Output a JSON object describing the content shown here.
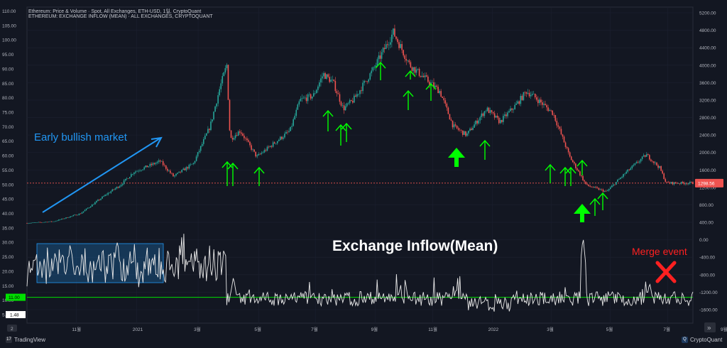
{
  "header": {
    "line1": "Ethereum: Price & Volume · Spot, All Exchanges, ETH-USD, 1일, CryptoQuant",
    "line2": "ETHEREUM: EXCHANGE INFLOW (MEAN) · ALL EXCHANGES, CRYPTOQUANT"
  },
  "annotations": {
    "early": "Early bullish market",
    "inflow": "Exchange Inflow(Mean)",
    "merge": "Merge event"
  },
  "footer": {
    "left": "TradingView",
    "right": "CryptoQuant",
    "pane_num": "2",
    "go_icon": "chevron-double-right-icon"
  },
  "colors": {
    "up": "#26a69a",
    "down": "#ef5350",
    "arrow": "#00ff00",
    "trend": "#2196f3",
    "price_line": "#ef5350",
    "merge": "#ff2020",
    "threshold": "#00e000"
  },
  "chart_data": {
    "type": "candlestick+line",
    "left_axis": {
      "ticks": [
        "110.00",
        "105.00",
        "100.00",
        "95.00",
        "90.00",
        "85.00",
        "80.00",
        "75.00",
        "70.00",
        "65.00",
        "60.00",
        "55.00",
        "50.00",
        "45.00",
        "40.00",
        "35.00",
        "30.00",
        "25.00",
        "20.00",
        "15.00",
        "10.00",
        "5.00"
      ]
    },
    "right_axis": {
      "ticks": [
        "5200.00",
        "4800.00",
        "4400.00",
        "4000.00",
        "3600.00",
        "3200.00",
        "2800.00",
        "2400.00",
        "2000.00",
        "1600.00",
        "1200.00",
        "800.00",
        "400.00",
        "0.00",
        "-400.00",
        "-800.00",
        "-1200.00",
        "-1600.00"
      ]
    },
    "x_ticks": [
      "11월",
      "2021",
      "3월",
      "5월",
      "7월",
      "9월",
      "11월",
      "2022",
      "3월",
      "5월",
      "7월",
      "9월"
    ],
    "x_tick_fracs": [
      0.074,
      0.165,
      0.257,
      0.348,
      0.433,
      0.523,
      0.609,
      0.699,
      0.787,
      0.876,
      0.962,
      1.052
    ],
    "price_label": "1298.56",
    "threshold_label": "11.00",
    "inflow_last_label": "1.48",
    "price_series": {
      "name": "ETH-USD",
      "t": [
        0,
        0.04,
        0.08,
        0.12,
        0.14,
        0.16,
        0.2,
        0.22,
        0.25,
        0.275,
        0.29,
        0.3,
        0.305,
        0.32,
        0.345,
        0.37,
        0.395,
        0.41,
        0.43,
        0.445,
        0.46,
        0.475,
        0.49,
        0.52,
        0.55,
        0.575,
        0.59,
        0.62,
        0.64,
        0.66,
        0.69,
        0.71,
        0.735,
        0.75,
        0.76,
        0.775,
        0.79,
        0.815,
        0.84,
        0.87,
        0.9,
        0.93,
        0.95,
        0.96
      ],
      "values": [
        380,
        420,
        600,
        1050,
        1250,
        1550,
        1800,
        1450,
        1750,
        2600,
        3500,
        4000,
        2300,
        2500,
        1900,
        2200,
        2500,
        3200,
        3300,
        3800,
        3600,
        3000,
        3200,
        3900,
        4750,
        4000,
        3800,
        3400,
        2600,
        2400,
        3000,
        2700,
        3100,
        3400,
        3300,
        3100,
        2900,
        1900,
        1250,
        1100,
        1550,
        1950,
        1650,
        1300
      ]
    },
    "inflow_series": {
      "name": "Exchange Inflow (Mean)",
      "peaks": [
        {
          "t": 0.065,
          "value": 30
        },
        {
          "t": 0.135,
          "value": 31
        },
        {
          "t": 0.31,
          "value": 18
        },
        {
          "t": 0.43,
          "value": 13
        },
        {
          "t": 0.56,
          "value": 14
        },
        {
          "t": 0.63,
          "value": 13
        },
        {
          "t": 0.835,
          "value": 32
        },
        {
          "t": 0.935,
          "value": 16
        }
      ],
      "ylim": [
        0,
        110
      ]
    },
    "threshold": 11.0
  }
}
